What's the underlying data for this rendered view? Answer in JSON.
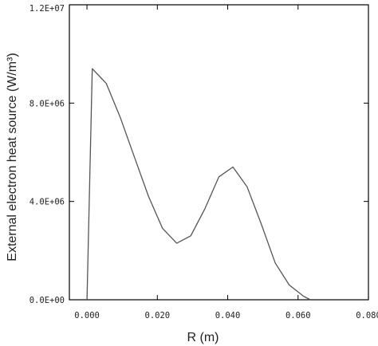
{
  "chart_data": {
    "type": "line",
    "xlabel": "R (m)",
    "ylabel": "External electron heat source (W/m³)",
    "xlim": [
      -0.005,
      0.08
    ],
    "ylim": [
      0,
      12000000
    ],
    "x_ticks": [
      0,
      0.02,
      0.04,
      0.06,
      0.08
    ],
    "x_tick_labels": [
      "0.000",
      "0.020",
      "0.040",
      "0.060",
      "0.080"
    ],
    "y_ticks": [
      0,
      4000000,
      8000000,
      12000000
    ],
    "y_tick_labels": [
      "0.0E+00",
      "4.0E+06",
      "8.0E+06",
      "1.2E+07"
    ],
    "grid": false,
    "series": [
      {
        "x": [
          0.0,
          0.0015,
          0.0055,
          0.0095,
          0.0135,
          0.0175,
          0.0215,
          0.0255,
          0.0295,
          0.0335,
          0.0375,
          0.0415,
          0.0455,
          0.0495,
          0.0535,
          0.0575,
          0.0615,
          0.0635
        ],
        "y": [
          0,
          9400000,
          8800000,
          7400000,
          5800000,
          4200000,
          2900000,
          2300000,
          2600000,
          3700000,
          5000000,
          5400000,
          4600000,
          3100000,
          1500000,
          600000,
          150000,
          0
        ]
      }
    ]
  }
}
